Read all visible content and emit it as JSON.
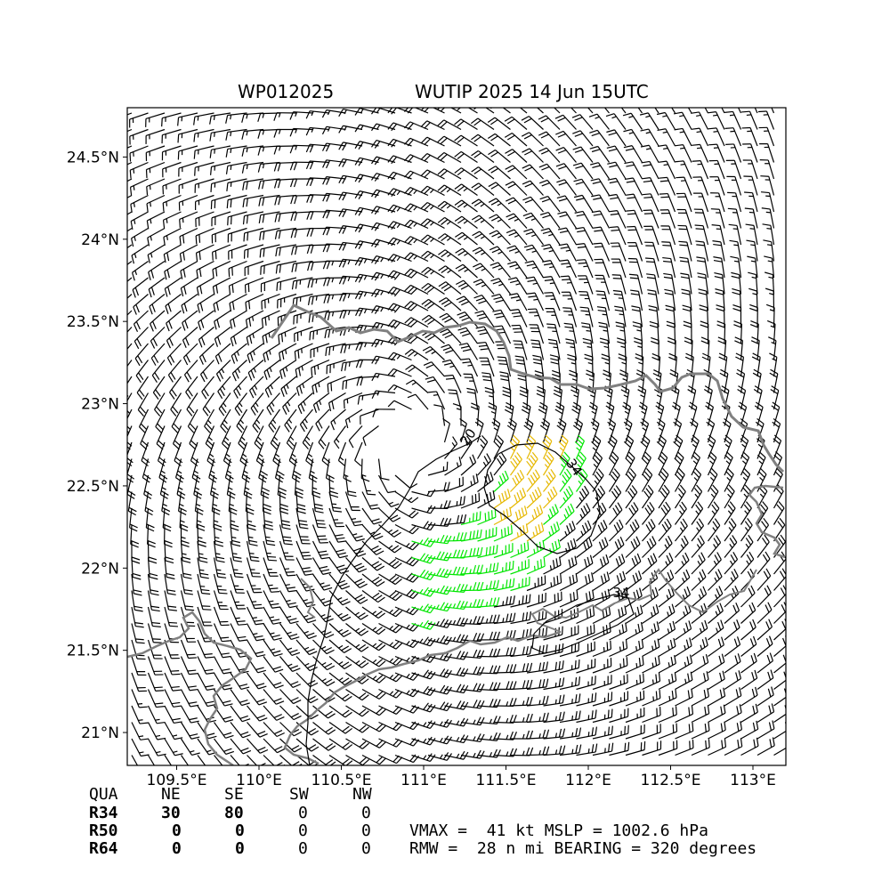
{
  "header": {
    "storm_id": "WP012025",
    "storm_title": "WUTIP 2025 14 Jun 15UTC"
  },
  "map": {
    "lon_range": [
      109.2,
      113.2
    ],
    "lat_range": [
      20.8,
      24.8
    ],
    "x_ticks": [
      "109.5°E",
      "110°E",
      "110.5°E",
      "111°E",
      "111.5°E",
      "112°E",
      "112.5°E",
      "113°E"
    ],
    "y_ticks": [
      "24.5°N",
      "24°N",
      "23.5°N",
      "23°N",
      "22.5°N",
      "22°N",
      "21.5°N",
      "21°N"
    ],
    "contour_labels": [
      "20",
      "34",
      "34"
    ],
    "wind_colors": {
      "below_34kt": "#000000",
      "34_to_50kt": "#00e600",
      "gale_max": "#e6b800"
    },
    "coastline_color": "#808080",
    "storm_center": {
      "lon": 110.9,
      "lat": 22.75
    }
  },
  "quadrants": {
    "header": [
      "QUA",
      "NE",
      "SE",
      "SW",
      "NW"
    ],
    "rows": [
      {
        "label": "R34",
        "NE": "30",
        "SE": "80",
        "SW": "0",
        "NW": "0"
      },
      {
        "label": "R50",
        "NE": "0",
        "SE": "0",
        "SW": "0",
        "NW": "0"
      },
      {
        "label": "R64",
        "NE": "0",
        "SE": "0",
        "SW": "0",
        "NW": "0"
      }
    ]
  },
  "stats": {
    "line1": "VMAX =  41 kt MSLP = 1002.6 hPa",
    "line2": "RMW =  28 n mi BEARING = 320 degrees"
  }
}
